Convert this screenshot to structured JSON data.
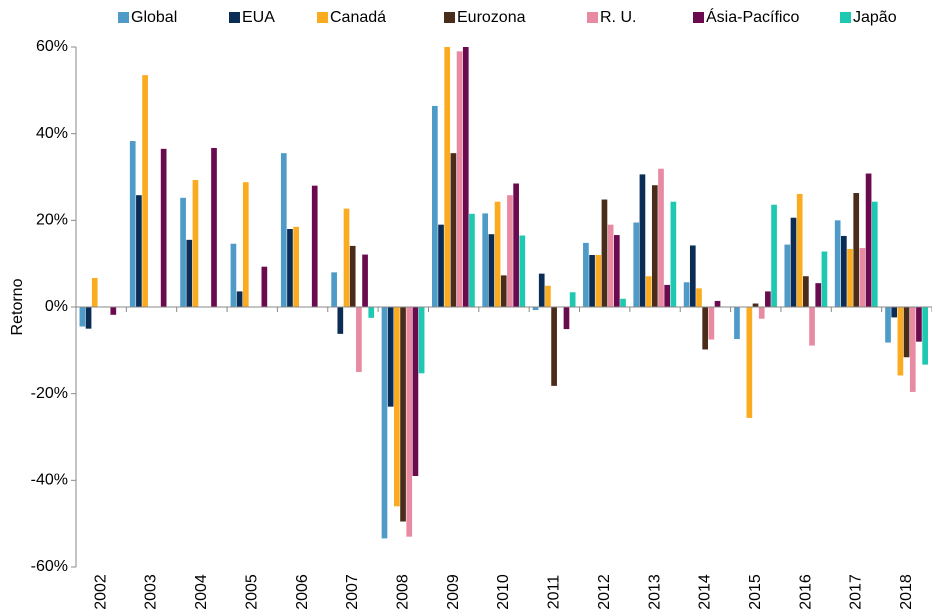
{
  "chart_data": {
    "type": "bar",
    "y_label": "Retorno",
    "categories": [
      "2002",
      "2003",
      "2004",
      "2005",
      "2006",
      "2007",
      "2008",
      "2009",
      "2010",
      "2011",
      "2012",
      "2013",
      "2014",
      "2015",
      "2016",
      "2017",
      "2018"
    ],
    "series": [
      {
        "name": "Global",
        "color": "#4f9bc8",
        "values": [
          -4.5,
          38.3,
          25.2,
          14.6,
          35.5,
          8,
          -53.4,
          46.4,
          21.6,
          -0.7,
          14.8,
          19.5,
          5.7,
          -7.4,
          14.4,
          20,
          -8.2
        ]
      },
      {
        "name": "EUA",
        "color": "#0b2d55",
        "values": [
          -5,
          25.8,
          15.5,
          3.6,
          18,
          -6.2,
          -23,
          19,
          16.8,
          7.7,
          12,
          30.6,
          14.2,
          0,
          20.6,
          16.4,
          -2.4
        ]
      },
      {
        "name": "Canadá",
        "color": "#fbab1f",
        "values": [
          6.7,
          53.5,
          29.3,
          28.8,
          18.5,
          22.7,
          -46,
          60,
          24.3,
          4.9,
          12,
          7.1,
          4.3,
          -25.6,
          26.1,
          13.4,
          -15.8
        ]
      },
      {
        "name": "Eurozona",
        "color": "#4a2c1a",
        "values": [
          null,
          null,
          null,
          null,
          null,
          14.1,
          -49.5,
          35.5,
          7.3,
          -18.2,
          24.8,
          28.1,
          -9.8,
          0.8,
          7.1,
          26.3,
          -11.6
        ]
      },
      {
        "name": "R. U.",
        "color": "#e88aa2",
        "values": [
          null,
          null,
          null,
          null,
          null,
          -15,
          -53,
          59,
          25.8,
          0,
          19,
          31.9,
          -7.5,
          -2.7,
          -8.9,
          13.6,
          -19.6
        ]
      },
      {
        "name": "Ásia-Pacífico",
        "color": "#6a0a4f",
        "values": [
          -1.8,
          36.5,
          36.7,
          9.3,
          28,
          12.1,
          -39,
          60,
          28.5,
          -5.1,
          16.6,
          5.1,
          1.4,
          3.6,
          5.5,
          30.8,
          -8
        ]
      },
      {
        "name": "Japão",
        "color": "#1fc8b0",
        "values": [
          null,
          null,
          null,
          null,
          null,
          -2.5,
          -15.3,
          21.5,
          16.5,
          3.4,
          1.9,
          24.3,
          0,
          23.6,
          12.8,
          24.3,
          -13.3
        ]
      }
    ],
    "ylim": [
      -60,
      60
    ],
    "yticks": [
      {
        "value": -60,
        "label": "-60%"
      },
      {
        "value": -40,
        "label": "-40%"
      },
      {
        "value": -20,
        "label": "-20%"
      },
      {
        "value": 0,
        "label": "0%"
      },
      {
        "value": 20,
        "label": "20%"
      },
      {
        "value": 40,
        "label": "40%"
      },
      {
        "value": 60,
        "label": "60%"
      }
    ],
    "legend": "top"
  }
}
